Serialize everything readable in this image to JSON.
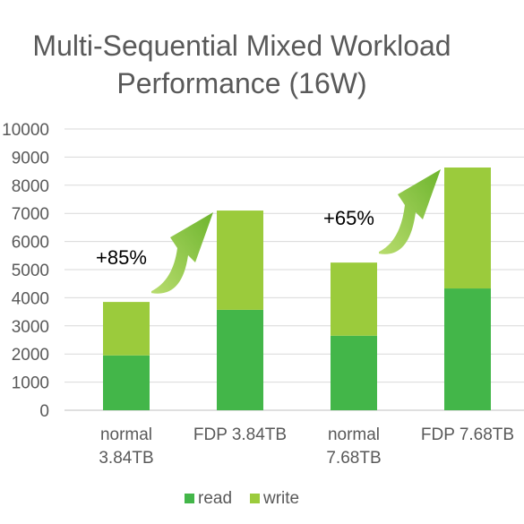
{
  "chart_data": {
    "type": "bar",
    "stacked": true,
    "title_lines": [
      "Multi-Sequential Mixed Workload",
      "Performance (16W)"
    ],
    "categories": [
      [
        "normal",
        "3.84TB"
      ],
      [
        "FDP 3.84TB"
      ],
      [
        "normal",
        "7.68TB"
      ],
      [
        "FDP 7.68TB"
      ]
    ],
    "series": [
      {
        "name": "read",
        "values": [
          1950,
          3570,
          2650,
          4330
        ],
        "color": "#43b649"
      },
      {
        "name": "write",
        "values": [
          1900,
          3530,
          2600,
          4300
        ],
        "color": "#9bcb3c"
      }
    ],
    "ylim": [
      0,
      10000
    ],
    "yticks": [
      0,
      1000,
      2000,
      3000,
      4000,
      5000,
      6000,
      7000,
      8000,
      9000,
      10000
    ],
    "grid": true,
    "legend_position": "bottom",
    "annotations": [
      {
        "text": "+85%",
        "from_category": 0,
        "to_category": 1
      },
      {
        "text": "+65%",
        "from_category": 2,
        "to_category": 3
      }
    ],
    "arrow_color": "#8cc63f",
    "gridline_color": "#d9d9d9"
  }
}
